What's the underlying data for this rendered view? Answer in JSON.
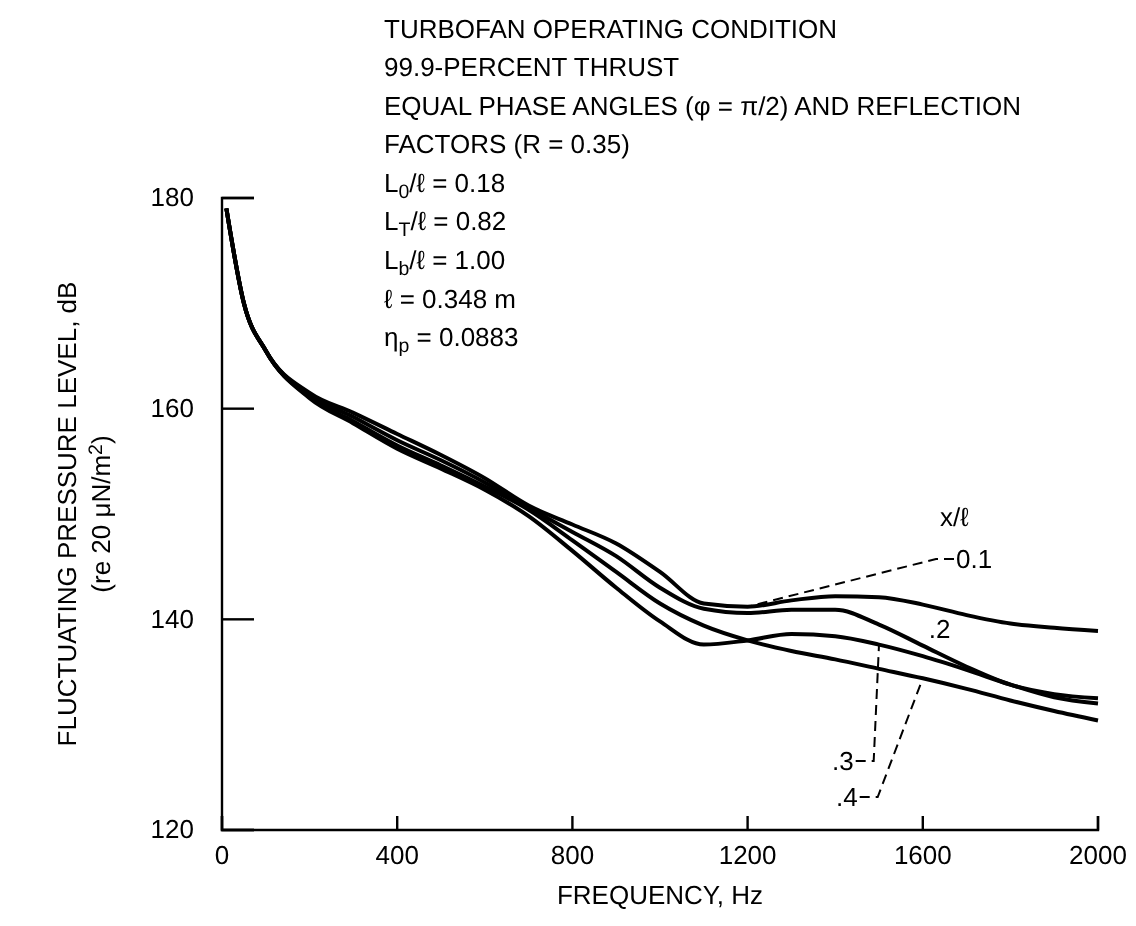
{
  "chart_data": {
    "type": "line",
    "title": "TURBOFAN OPERATING CONDITION",
    "annotations": [
      "99.9-PERCENT THRUST",
      "EQUAL PHASE ANGLES (φ = π/2) AND REFLECTION",
      "FACTORS (R = 0.35)",
      "L$_{0}$/ℓ = 0.18",
      "L$_{T}$/ℓ = 0.82",
      "L$_{b}$/ℓ = 1.00",
      "ℓ = 0.348 m",
      "η$_{p}$ = 0.0883"
    ],
    "xlabel": "FREQUENCY, Hz",
    "ylabel": "FLUCTUATING PRESSURE LEVEL, dB\n(re 20 μN/m$^{2}$)",
    "legend_title": "x/ℓ",
    "x": [
      10,
      50,
      100,
      200,
      300,
      400,
      500,
      600,
      700,
      800,
      900,
      1000,
      1100,
      1200,
      1300,
      1400,
      1500,
      1600,
      1700,
      1800,
      1900,
      2000
    ],
    "series": [
      {
        "name": "0.1",
        "color": "#000000",
        "values": [
          179,
          170,
          165.5,
          161.5,
          159.6,
          157.6,
          155.6,
          153.4,
          150.8,
          149.0,
          147.2,
          144.5,
          141.5,
          141.2,
          141.8,
          142.2,
          142.1,
          141.4,
          140.4,
          139.6,
          139.2,
          138.9
        ]
      },
      {
        "name": ".2",
        "color": "#000000",
        "values": [
          179,
          170,
          165.5,
          161.3,
          159.2,
          157,
          155.1,
          153,
          150.6,
          148.3,
          146,
          143,
          141,
          140.6,
          140.9,
          140.9,
          139.5,
          137.5,
          135.5,
          133.8,
          132.9,
          132.5
        ]
      },
      {
        "name": ".3",
        "color": "#000000",
        "values": [
          179,
          170,
          165.5,
          161,
          158.6,
          156.2,
          154.3,
          152.3,
          149.8,
          146.5,
          143,
          139.8,
          137.6,
          138,
          138.6,
          138.4,
          137.6,
          136.5,
          135.2,
          133.8,
          132.6,
          132.0
        ]
      },
      {
        "name": ".4",
        "color": "#000000",
        "values": [
          179,
          170,
          165.5,
          161.1,
          158.8,
          156.5,
          154.6,
          152.6,
          150.4,
          147.5,
          144.5,
          141.5,
          139.4,
          138,
          137,
          136.2,
          135.3,
          134.4,
          133.4,
          132.3,
          131.3,
          130.4
        ]
      }
    ],
    "xlim": [
      0,
      2000
    ],
    "ylim": [
      120,
      180
    ],
    "xticks": [
      0,
      400,
      800,
      1200,
      1600,
      2000
    ],
    "yticks": [
      120,
      140,
      160,
      180
    ],
    "grid": false,
    "marker": "none",
    "line_style": "solid"
  }
}
